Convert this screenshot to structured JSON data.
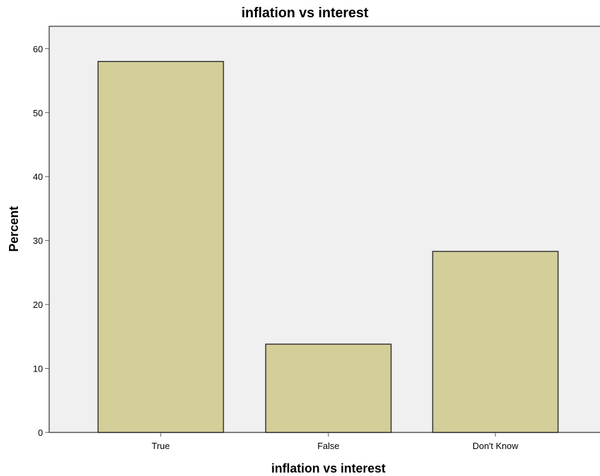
{
  "chart_data": {
    "type": "bar",
    "title": "inflation vs interest",
    "xlabel": "inflation vs interest",
    "ylabel": "Percent",
    "categories": [
      "True",
      "False",
      "Don't Know"
    ],
    "values": [
      58.0,
      13.8,
      28.3
    ],
    "ylim": [
      0,
      63.5
    ],
    "yticks": [
      0,
      10,
      20,
      30,
      40,
      50,
      60
    ],
    "grid": false,
    "colors": {
      "bar_fill": "#d4cf99",
      "bar_stroke": "#333333",
      "plot_background": "#f0f0f0"
    }
  }
}
